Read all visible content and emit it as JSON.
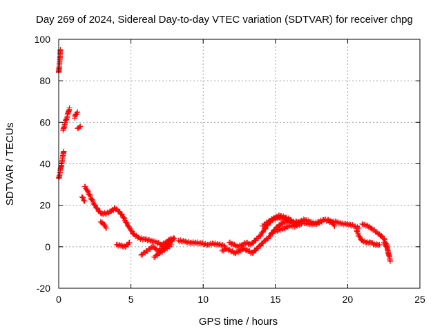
{
  "chart_data": {
    "type": "scatter",
    "title": "Day 269 of 2024, Sidereal Day-to-day VTEC variation (SDTVAR) for receiver chpg",
    "xlabel": "GPS time / hours",
    "ylabel": "SDTVAR / TECUs",
    "xlim": [
      0,
      25
    ],
    "ylim": [
      -20,
      100
    ],
    "xticks": [
      0,
      5,
      10,
      15,
      20,
      25
    ],
    "yticks": [
      -20,
      0,
      20,
      40,
      60,
      80,
      100
    ],
    "grid": true,
    "marker": "+",
    "color": "#ff0000",
    "series": [
      {
        "name": "SDTVAR",
        "segments": [
          [
            [
              0.0,
              84
            ],
            [
              0.05,
              88
            ],
            [
              0.1,
              92
            ],
            [
              0.12,
              95
            ]
          ],
          [
            [
              0.0,
              33
            ],
            [
              0.1,
              36
            ],
            [
              0.2,
              40
            ],
            [
              0.3,
              44
            ],
            [
              0.35,
              46
            ]
          ],
          [
            [
              0.3,
              56
            ],
            [
              0.45,
              60
            ],
            [
              0.6,
              63
            ],
            [
              0.75,
              67
            ]
          ],
          [
            [
              1.1,
              62
            ],
            [
              1.2,
              64
            ],
            [
              1.3,
              65
            ]
          ],
          [
            [
              1.3,
              57
            ],
            [
              1.5,
              58
            ]
          ],
          [
            [
              1.6,
              24
            ],
            [
              1.7,
              23
            ],
            [
              1.8,
              22
            ]
          ],
          [
            [
              1.8,
              29
            ],
            [
              2.0,
              27
            ],
            [
              2.2,
              24
            ],
            [
              2.5,
              20
            ],
            [
              2.8,
              17
            ],
            [
              3.0,
              16
            ],
            [
              3.3,
              16
            ],
            [
              3.6,
              17
            ],
            [
              3.9,
              18.5
            ],
            [
              4.2,
              17
            ],
            [
              4.5,
              14
            ],
            [
              4.8,
              10
            ],
            [
              5.2,
              6
            ],
            [
              5.6,
              4
            ],
            [
              6.0,
              3.5
            ],
            [
              6.4,
              3
            ],
            [
              6.8,
              2
            ],
            [
              7.1,
              1
            ],
            [
              7.4,
              2
            ],
            [
              7.7,
              3.5
            ],
            [
              8.0,
              4
            ]
          ],
          [
            [
              2.9,
              12
            ],
            [
              3.1,
              11
            ],
            [
              3.3,
              9
            ]
          ],
          [
            [
              4.0,
              1
            ],
            [
              4.3,
              0.5
            ],
            [
              4.6,
              0
            ],
            [
              4.9,
              2
            ]
          ],
          [
            [
              5.7,
              -4
            ],
            [
              6.1,
              -2
            ],
            [
              6.5,
              0
            ],
            [
              6.9,
              -2
            ],
            [
              7.3,
              0
            ],
            [
              7.7,
              2
            ],
            [
              8.0,
              4
            ]
          ],
          [
            [
              6.6,
              -5
            ],
            [
              7.0,
              -3
            ],
            [
              7.4,
              -1
            ],
            [
              7.8,
              1
            ]
          ],
          [
            [
              8.3,
              3
            ],
            [
              8.7,
              2.5
            ],
            [
              9.1,
              2
            ],
            [
              9.5,
              2
            ],
            [
              9.9,
              1.5
            ],
            [
              10.3,
              1
            ],
            [
              10.7,
              1.5
            ],
            [
              11.1,
              1
            ],
            [
              11.5,
              0.5
            ]
          ],
          [
            [
              11.3,
              -2
            ],
            [
              11.6,
              -1
            ],
            [
              11.9,
              -2
            ],
            [
              12.2,
              -3
            ],
            [
              12.5,
              -2
            ],
            [
              12.8,
              -1
            ],
            [
              13.1,
              -2
            ],
            [
              13.4,
              -3
            ],
            [
              13.7,
              -1
            ],
            [
              14.0,
              1
            ],
            [
              14.3,
              3
            ],
            [
              14.6,
              5
            ],
            [
              14.9,
              8
            ],
            [
              15.2,
              10
            ],
            [
              15.6,
              12
            ],
            [
              16.0,
              12
            ],
            [
              16.4,
              11
            ],
            [
              16.8,
              12
            ],
            [
              17.2,
              11
            ],
            [
              17.6,
              11
            ],
            [
              18.0,
              12
            ],
            [
              18.4,
              13
            ],
            [
              18.8,
              12
            ],
            [
              19.2,
              12
            ],
            [
              19.6,
              11
            ],
            [
              20.0,
              11
            ],
            [
              20.4,
              10
            ],
            [
              20.8,
              9
            ]
          ],
          [
            [
              11.8,
              2
            ],
            [
              12.1,
              1
            ],
            [
              12.4,
              0
            ],
            [
              12.7,
              1
            ],
            [
              13.0,
              2
            ],
            [
              13.3,
              1
            ],
            [
              13.6,
              3
            ],
            [
              13.9,
              5
            ],
            [
              14.2,
              8
            ],
            [
              14.5,
              11
            ],
            [
              14.8,
              13
            ],
            [
              15.1,
              14
            ],
            [
              15.4,
              14
            ],
            [
              15.8,
              13
            ],
            [
              16.2,
              12
            ],
            [
              16.6,
              12
            ],
            [
              17.0,
              13
            ],
            [
              17.4,
              12
            ],
            [
              17.8,
              11
            ],
            [
              18.2,
              12
            ]
          ],
          [
            [
              14.1,
              10
            ],
            [
              14.5,
              12
            ],
            [
              14.9,
              14
            ],
            [
              15.3,
              15
            ],
            [
              15.7,
              14
            ],
            [
              16.1,
              13
            ]
          ],
          [
            [
              14.8,
              7
            ],
            [
              15.2,
              8
            ],
            [
              15.6,
              9
            ],
            [
              16.0,
              10
            ],
            [
              16.4,
              10
            ],
            [
              16.8,
              11
            ]
          ],
          [
            [
              18.6,
              13
            ],
            [
              18.9,
              12
            ],
            [
              19.1,
              10
            ]
          ],
          [
            [
              20.6,
              8
            ],
            [
              20.8,
              5
            ],
            [
              21.0,
              3
            ],
            [
              21.3,
              2
            ],
            [
              21.6,
              2
            ],
            [
              21.9,
              1
            ],
            [
              22.2,
              1
            ]
          ],
          [
            [
              21.0,
              11
            ],
            [
              21.4,
              10
            ],
            [
              21.8,
              8
            ],
            [
              22.2,
              6
            ],
            [
              22.5,
              4
            ],
            [
              22.7,
              1
            ],
            [
              22.85,
              -4
            ],
            [
              22.95,
              -7
            ]
          ],
          [
            [
              22.5,
              2
            ],
            [
              22.7,
              0
            ],
            [
              22.8,
              -2
            ]
          ]
        ]
      }
    ]
  }
}
